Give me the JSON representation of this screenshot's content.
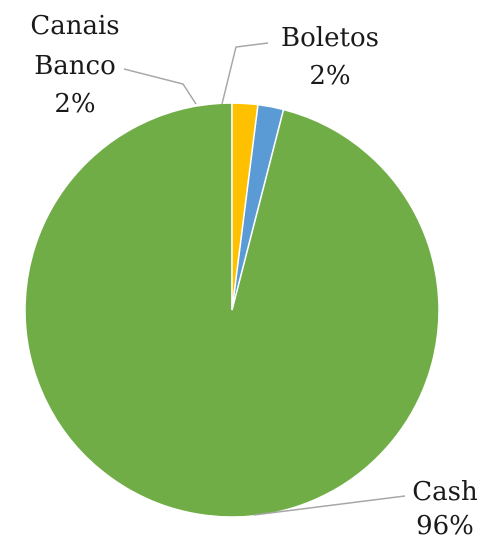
{
  "chart_data": {
    "type": "pie",
    "title": "",
    "slices": [
      {
        "label_lines": [
          "Cash"
        ],
        "pct_label": "96%",
        "value": 96,
        "color": "#70ad47"
      },
      {
        "label_lines": [
          "Canais",
          "Banco"
        ],
        "pct_label": "2%",
        "value": 2,
        "color": "#5b9bd5"
      },
      {
        "label_lines": [
          "Boletos"
        ],
        "pct_label": "2%",
        "value": 2,
        "color": "#ffc000"
      }
    ],
    "start_angle_deg": 0,
    "direction": "counterclockwise",
    "legend": "none",
    "data_labels": "outside-with-leader-lines"
  }
}
